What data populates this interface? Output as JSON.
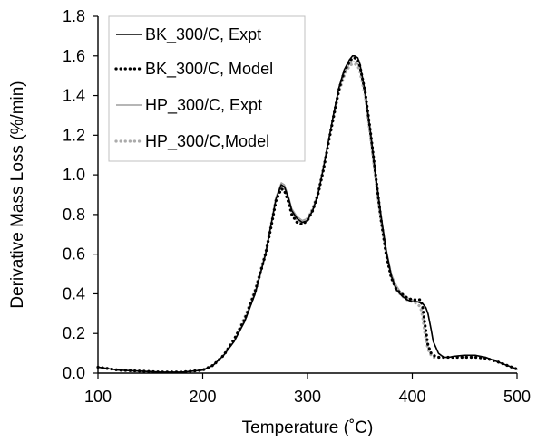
{
  "chart_data": {
    "type": "line",
    "title": "",
    "xlabel": "Temperature (˚C)",
    "ylabel": "Derivative Mass Loss (%/min)",
    "xlim": [
      100,
      500
    ],
    "ylim": [
      0,
      1.8
    ],
    "x_ticks": [
      "100",
      "200",
      "300",
      "400",
      "500"
    ],
    "y_ticks": [
      "0.0",
      "0.2",
      "0.4",
      "0.6",
      "0.8",
      "1.0",
      "1.2",
      "1.4",
      "1.6",
      "1.8"
    ],
    "grid": false,
    "legend_position": "top-left",
    "series": [
      {
        "name": "BK_300/C, Expt",
        "style": "solid",
        "color": "#000000",
        "x": [
          100,
          120,
          140,
          160,
          180,
          200,
          210,
          220,
          230,
          240,
          250,
          260,
          265,
          270,
          275,
          278,
          282,
          285,
          290,
          295,
          300,
          305,
          310,
          315,
          320,
          325,
          330,
          335,
          340,
          343,
          345,
          348,
          350,
          355,
          360,
          365,
          370,
          375,
          380,
          385,
          390,
          395,
          400,
          405,
          410,
          413,
          415,
          418,
          420,
          425,
          430,
          435,
          440,
          450,
          460,
          470,
          480,
          490,
          500
        ],
        "y": [
          0.03,
          0.015,
          0.01,
          0.005,
          0.005,
          0.015,
          0.04,
          0.09,
          0.16,
          0.26,
          0.4,
          0.6,
          0.74,
          0.88,
          0.95,
          0.94,
          0.88,
          0.82,
          0.78,
          0.76,
          0.77,
          0.82,
          0.9,
          1.03,
          1.17,
          1.31,
          1.44,
          1.53,
          1.58,
          1.6,
          1.6,
          1.59,
          1.56,
          1.42,
          1.22,
          1.0,
          0.8,
          0.62,
          0.49,
          0.42,
          0.39,
          0.37,
          0.36,
          0.36,
          0.35,
          0.33,
          0.3,
          0.22,
          0.16,
          0.1,
          0.08,
          0.08,
          0.085,
          0.09,
          0.09,
          0.08,
          0.06,
          0.04,
          0.02
        ]
      },
      {
        "name": "BK_300/C, Model",
        "style": "dotted",
        "color": "#000000",
        "x": [
          100,
          120,
          140,
          160,
          180,
          200,
          210,
          220,
          230,
          240,
          250,
          260,
          265,
          270,
          275,
          278,
          282,
          285,
          290,
          295,
          300,
          305,
          310,
          315,
          320,
          325,
          330,
          335,
          340,
          343,
          345,
          348,
          350,
          355,
          360,
          365,
          370,
          375,
          380,
          385,
          390,
          395,
          400,
          405,
          408,
          410,
          412,
          415,
          418,
          420,
          425,
          430,
          440,
          450,
          460,
          470,
          480,
          490,
          500
        ],
        "y": [
          0.03,
          0.015,
          0.01,
          0.005,
          0.005,
          0.015,
          0.04,
          0.09,
          0.17,
          0.27,
          0.41,
          0.6,
          0.73,
          0.87,
          0.93,
          0.92,
          0.86,
          0.8,
          0.76,
          0.75,
          0.77,
          0.82,
          0.9,
          1.02,
          1.16,
          1.3,
          1.43,
          1.52,
          1.57,
          1.59,
          1.59,
          1.58,
          1.55,
          1.42,
          1.22,
          1.0,
          0.78,
          0.6,
          0.48,
          0.42,
          0.4,
          0.38,
          0.37,
          0.37,
          0.37,
          0.33,
          0.25,
          0.14,
          0.1,
          0.09,
          0.08,
          0.08,
          0.08,
          0.08,
          0.08,
          0.075,
          0.06,
          0.04,
          0.02
        ]
      },
      {
        "name": "HP_300/C, Expt",
        "style": "solid",
        "color": "#9e9e9e",
        "x": [
          100,
          120,
          140,
          160,
          180,
          200,
          210,
          220,
          230,
          240,
          250,
          260,
          265,
          270,
          275,
          278,
          282,
          285,
          290,
          295,
          300,
          305,
          310,
          315,
          320,
          325,
          330,
          335,
          340,
          343,
          345,
          348,
          350,
          355,
          360,
          365,
          370,
          375,
          380,
          385,
          390,
          395,
          400,
          405,
          410,
          413,
          415,
          418,
          420,
          425,
          430,
          435,
          440,
          450,
          460,
          470,
          480,
          490,
          500
        ],
        "y": [
          0.03,
          0.015,
          0.01,
          0.005,
          0.005,
          0.015,
          0.04,
          0.09,
          0.16,
          0.27,
          0.41,
          0.61,
          0.75,
          0.89,
          0.96,
          0.95,
          0.89,
          0.83,
          0.79,
          0.77,
          0.78,
          0.83,
          0.91,
          1.03,
          1.17,
          1.3,
          1.43,
          1.51,
          1.56,
          1.57,
          1.57,
          1.56,
          1.53,
          1.4,
          1.2,
          0.99,
          0.8,
          0.63,
          0.5,
          0.44,
          0.4,
          0.38,
          0.37,
          0.36,
          0.35,
          0.33,
          0.3,
          0.22,
          0.16,
          0.1,
          0.08,
          0.08,
          0.085,
          0.09,
          0.09,
          0.08,
          0.06,
          0.04,
          0.02
        ]
      },
      {
        "name": "HP_300/C,Model",
        "style": "dotted",
        "color": "#ababab",
        "x": [
          100,
          120,
          140,
          160,
          180,
          200,
          210,
          220,
          230,
          240,
          250,
          260,
          265,
          270,
          275,
          278,
          282,
          285,
          290,
          295,
          300,
          305,
          310,
          315,
          320,
          325,
          330,
          335,
          340,
          343,
          345,
          348,
          350,
          355,
          360,
          365,
          370,
          375,
          380,
          385,
          390,
          395,
          400,
          405,
          408,
          410,
          412,
          415,
          418,
          420,
          425,
          430,
          440,
          450,
          460,
          470,
          480,
          490,
          500
        ],
        "y": [
          0.03,
          0.015,
          0.01,
          0.005,
          0.005,
          0.015,
          0.04,
          0.09,
          0.17,
          0.28,
          0.42,
          0.61,
          0.74,
          0.88,
          0.94,
          0.93,
          0.87,
          0.81,
          0.77,
          0.76,
          0.78,
          0.83,
          0.91,
          1.03,
          1.16,
          1.29,
          1.42,
          1.5,
          1.55,
          1.56,
          1.56,
          1.55,
          1.52,
          1.4,
          1.2,
          0.98,
          0.78,
          0.61,
          0.49,
          0.42,
          0.39,
          0.37,
          0.36,
          0.35,
          0.33,
          0.28,
          0.2,
          0.12,
          0.09,
          0.08,
          0.08,
          0.08,
          0.08,
          0.08,
          0.08,
          0.075,
          0.06,
          0.04,
          0.02
        ]
      }
    ]
  }
}
